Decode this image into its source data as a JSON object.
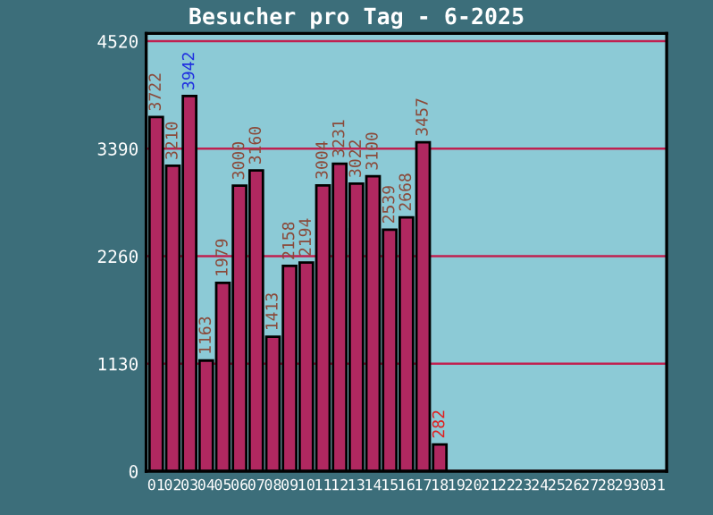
{
  "chart_data": {
    "type": "bar",
    "title": "Besucher pro Tag - 6-2025",
    "categories": [
      "01",
      "02",
      "03",
      "04",
      "05",
      "06",
      "07",
      "08",
      "09",
      "10",
      "11",
      "12",
      "13",
      "14",
      "15",
      "16",
      "17",
      "18",
      "19",
      "20",
      "21",
      "22",
      "23",
      "24",
      "25",
      "26",
      "27",
      "28",
      "29",
      "30",
      "31"
    ],
    "values": [
      3722,
      3210,
      3942,
      1163,
      1979,
      3000,
      3160,
      1413,
      2158,
      2194,
      3004,
      3231,
      3022,
      3100,
      2539,
      2668,
      3457,
      282,
      null,
      null,
      null,
      null,
      null,
      null,
      null,
      null,
      null,
      null,
      null,
      null,
      null
    ],
    "color": "#b02860",
    "ylim": [
      0,
      4600
    ],
    "yticks": [
      0,
      1130,
      2260,
      3390,
      4520
    ],
    "grid": "y",
    "data_labels": true
  }
}
